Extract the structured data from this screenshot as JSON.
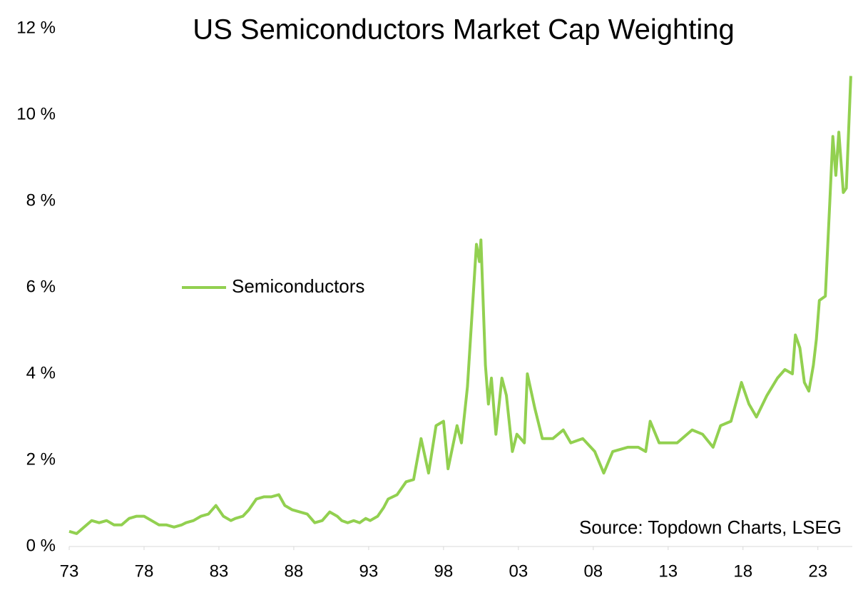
{
  "chart_data": {
    "type": "line",
    "title": "US Semiconductors Market Cap Weighting",
    "source": "Source: Topdown Charts, LSEG",
    "legend": "center-left",
    "x": [
      1973.0,
      1973.5,
      1974.0,
      1974.5,
      1975.0,
      1975.5,
      1976.0,
      1976.5,
      1977.0,
      1977.5,
      1978.0,
      1978.5,
      1979.0,
      1979.5,
      1980.0,
      1980.5,
      1980.8,
      1981.3,
      1981.8,
      1982.3,
      1982.8,
      1983.3,
      1983.8,
      1984.1,
      1984.6,
      1985.0,
      1985.5,
      1986.0,
      1986.5,
      1987.0,
      1987.4,
      1987.9,
      1988.4,
      1988.9,
      1989.4,
      1989.9,
      1990.4,
      1990.9,
      1991.2,
      1991.6,
      1992.0,
      1992.4,
      1992.8,
      1993.1,
      1993.6,
      1994.0,
      1994.3,
      1994.9,
      1995.5,
      1996.0,
      1996.5,
      1997.0,
      1997.5,
      1998.0,
      1998.3,
      1998.9,
      1999.2,
      1999.6,
      2000.0,
      2000.2,
      2000.4,
      2000.5,
      2000.8,
      2001.0,
      2001.2,
      2001.5,
      2001.9,
      2002.2,
      2002.6,
      2002.9,
      2003.4,
      2003.6,
      2004.1,
      2004.6,
      2005.3,
      2006.0,
      2006.5,
      2007.3,
      2008.1,
      2008.7,
      2009.3,
      2010.3,
      2011.0,
      2011.5,
      2011.8,
      2012.4,
      2013.6,
      2014.6,
      2015.3,
      2016.0,
      2016.5,
      2017.2,
      2017.9,
      2018.4,
      2018.9,
      2019.6,
      2020.3,
      2020.8,
      2021.3,
      2021.5,
      2021.8,
      2022.1,
      2022.4,
      2022.7,
      2022.9,
      2023.1,
      2023.5,
      2023.8,
      2024.0,
      2024.2,
      2024.4,
      2024.7,
      2024.9,
      2025.2
    ],
    "series": [
      {
        "name": "Semiconductors",
        "color": "#92d050",
        "values": [
          0.35,
          0.3,
          0.45,
          0.6,
          0.55,
          0.6,
          0.5,
          0.5,
          0.65,
          0.7,
          0.7,
          0.6,
          0.5,
          0.5,
          0.45,
          0.5,
          0.55,
          0.6,
          0.7,
          0.75,
          0.95,
          0.7,
          0.6,
          0.65,
          0.7,
          0.85,
          1.1,
          1.15,
          1.15,
          1.2,
          0.95,
          0.85,
          0.8,
          0.75,
          0.55,
          0.6,
          0.8,
          0.7,
          0.6,
          0.55,
          0.6,
          0.55,
          0.65,
          0.6,
          0.7,
          0.9,
          1.1,
          1.2,
          1.5,
          1.55,
          2.5,
          1.7,
          2.8,
          2.9,
          1.8,
          2.8,
          2.4,
          3.7,
          5.9,
          7.0,
          6.6,
          7.1,
          4.2,
          3.3,
          3.9,
          2.6,
          3.9,
          3.5,
          2.2,
          2.6,
          2.4,
          4.0,
          3.2,
          2.5,
          2.5,
          2.7,
          2.4,
          2.5,
          2.2,
          1.7,
          2.2,
          2.3,
          2.3,
          2.2,
          2.9,
          2.4,
          2.4,
          2.7,
          2.6,
          2.3,
          2.8,
          2.9,
          3.8,
          3.3,
          3.0,
          3.5,
          3.9,
          4.1,
          4.0,
          4.9,
          4.6,
          3.8,
          3.6,
          4.2,
          4.8,
          5.7,
          5.8,
          8.0,
          9.5,
          8.6,
          9.6,
          8.2,
          8.3,
          10.9
        ]
      }
    ],
    "xlim": [
      1973,
      2025.3
    ],
    "xticks": [
      {
        "value": 1973,
        "label": "73"
      },
      {
        "value": 1978,
        "label": "78"
      },
      {
        "value": 1983,
        "label": "83"
      },
      {
        "value": 1988,
        "label": "88"
      },
      {
        "value": 1993,
        "label": "93"
      },
      {
        "value": 1998,
        "label": "98"
      },
      {
        "value": 2003,
        "label": "03"
      },
      {
        "value": 2008,
        "label": "08"
      },
      {
        "value": 2013,
        "label": "13"
      },
      {
        "value": 2018,
        "label": "18"
      },
      {
        "value": 2023,
        "label": "23"
      }
    ],
    "ylim": [
      0,
      12
    ],
    "yticks": [
      {
        "value": 0,
        "label": "0 %"
      },
      {
        "value": 2,
        "label": "2 %"
      },
      {
        "value": 4,
        "label": "4 %"
      },
      {
        "value": 6,
        "label": "6 %"
      },
      {
        "value": 8,
        "label": "8 %"
      },
      {
        "value": 10,
        "label": "10 %"
      },
      {
        "value": 12,
        "label": "12 %"
      }
    ],
    "grid": false
  }
}
